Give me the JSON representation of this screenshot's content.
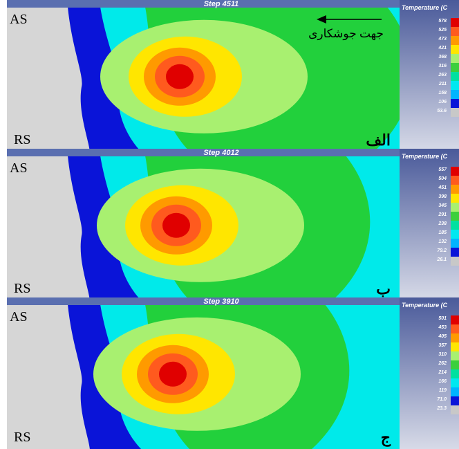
{
  "direction_label": "جهت جوشکاری",
  "panels": [
    {
      "step": "Step 4511",
      "as": "AS",
      "rs": "RS",
      "letter": "الف",
      "legend_title": "Temperature (C",
      "legend_values": [
        "578",
        "525",
        "473",
        "421",
        "368",
        "316",
        "263",
        "211",
        "158",
        "106",
        "53.6"
      ]
    },
    {
      "step": "Step 4012",
      "as": "AS",
      "rs": "RS",
      "letter": "ب",
      "legend_title": "Temperature (C",
      "legend_values": [
        "557",
        "504",
        "451",
        "398",
        "345",
        "291",
        "238",
        "185",
        "132",
        "79.2",
        "26.1"
      ]
    },
    {
      "step": "Step 3910",
      "as": "AS",
      "rs": "RS",
      "letter": "ج",
      "legend_title": "Temperature (C",
      "legend_values": [
        "501",
        "453",
        "405",
        "357",
        "310",
        "262",
        "214",
        "166",
        "119",
        "71.0",
        "23.3"
      ]
    }
  ]
}
